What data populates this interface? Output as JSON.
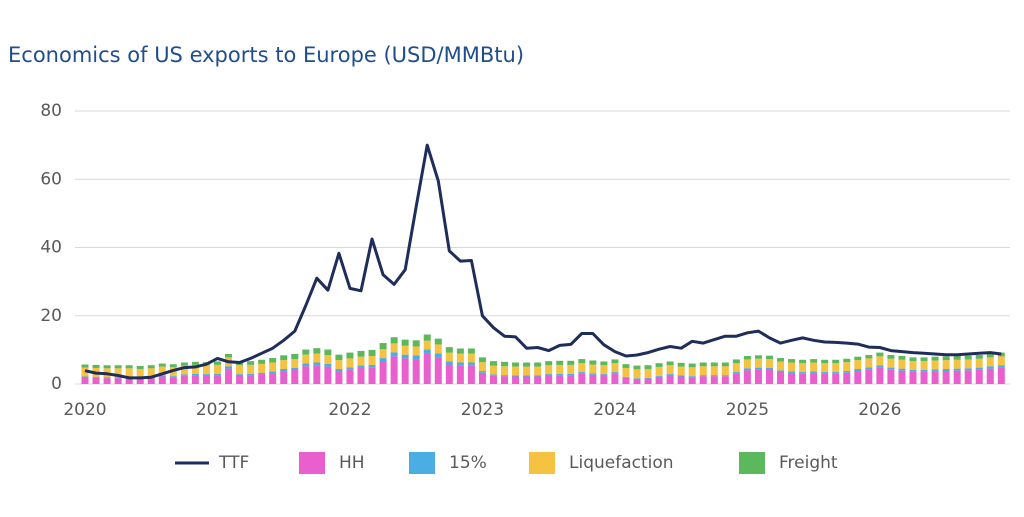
{
  "chart_data": {
    "type": "bar",
    "title": "Economics of US exports to Europe (USD/MMBtu)",
    "categories": [
      "2020",
      null,
      null,
      null,
      null,
      null,
      null,
      null,
      null,
      null,
      null,
      null,
      "2021",
      null,
      null,
      null,
      null,
      null,
      null,
      null,
      null,
      null,
      null,
      null,
      "2022",
      null,
      null,
      null,
      null,
      null,
      null,
      null,
      null,
      null,
      null,
      null,
      "2023",
      null,
      null,
      null,
      null,
      null,
      null,
      null,
      null,
      null,
      null,
      null,
      "2024",
      null,
      null,
      null,
      null,
      null,
      null,
      null,
      null,
      null,
      null,
      null,
      "2025",
      null,
      null,
      null,
      null,
      null,
      null,
      null,
      null,
      null,
      null,
      null,
      "2026",
      null,
      null,
      null,
      null,
      null,
      null,
      null,
      null,
      null,
      null,
      null
    ],
    "ylim": [
      0,
      80
    ],
    "yticks": [
      0,
      20,
      40,
      60,
      80
    ],
    "grid": true,
    "legend": "bottom",
    "series": [
      {
        "name": "HH",
        "color": "#e95fcd",
        "values": [
          1.9,
          1.8,
          1.7,
          1.7,
          1.7,
          1.6,
          1.7,
          2.2,
          2,
          2.4,
          2.6,
          2.5,
          2.6,
          4.5,
          2.5,
          2.6,
          2.9,
          3.2,
          3.8,
          4.1,
          5.2,
          5.5,
          5.1,
          3.8,
          4.3,
          4.7,
          4.9,
          6.6,
          8.1,
          7.5,
          7.3,
          8.8,
          7.8,
          5.7,
          5.5,
          5.5,
          3.3,
          2.4,
          2.3,
          2.2,
          2.2,
          2.2,
          2.5,
          2.6,
          2.6,
          3,
          2.7,
          2.5,
          3,
          1.8,
          1.5,
          1.6,
          2.1,
          2.5,
          2.2,
          2,
          2.3,
          2.3,
          2.3,
          3,
          4,
          4.2,
          4.1,
          3.5,
          3.2,
          3,
          3.2,
          3,
          3,
          3.3,
          3.8,
          4.3,
          4.8,
          4.2,
          3.9,
          3.6,
          3.6,
          3.7,
          3.8,
          3.9,
          4,
          4.2,
          4.5,
          4.8
        ]
      },
      {
        "name": "15%",
        "color": "#4aaee3",
        "values": [
          0.3,
          0.3,
          0.3,
          0.3,
          0.3,
          0.2,
          0.3,
          0.3,
          0.3,
          0.4,
          0.4,
          0.4,
          0.4,
          0.7,
          0.4,
          0.4,
          0.4,
          0.5,
          0.6,
          0.6,
          0.8,
          0.8,
          0.8,
          0.6,
          0.6,
          0.7,
          0.7,
          1,
          1.2,
          1.1,
          1.1,
          1.3,
          1.2,
          0.9,
          0.8,
          0.8,
          0.5,
          0.4,
          0.3,
          0.3,
          0.3,
          0.3,
          0.4,
          0.4,
          0.4,
          0.5,
          0.4,
          0.4,
          0.5,
          0.3,
          0.2,
          0.2,
          0.3,
          0.4,
          0.3,
          0.3,
          0.3,
          0.3,
          0.3,
          0.5,
          0.6,
          0.6,
          0.6,
          0.5,
          0.5,
          0.5,
          0.5,
          0.5,
          0.5,
          0.5,
          0.6,
          0.6,
          0.7,
          0.6,
          0.6,
          0.5,
          0.5,
          0.6,
          0.6,
          0.6,
          0.6,
          0.6,
          0.7,
          0.7
        ]
      },
      {
        "name": "Liquefaction",
        "color": "#f5c242",
        "values": [
          2.6,
          2.6,
          2.6,
          2.6,
          2.6,
          2.6,
          2.6,
          2.6,
          2.6,
          2.6,
          2.6,
          2.6,
          2.6,
          2.6,
          2.6,
          2.6,
          2.6,
          2.6,
          2.6,
          2.6,
          2.6,
          2.6,
          2.6,
          2.6,
          2.6,
          2.6,
          2.6,
          2.6,
          2.6,
          2.6,
          2.6,
          2.6,
          2.6,
          2.6,
          2.6,
          2.6,
          2.6,
          2.6,
          2.6,
          2.6,
          2.6,
          2.6,
          2.6,
          2.6,
          2.6,
          2.6,
          2.6,
          2.6,
          2.6,
          2.6,
          2.6,
          2.6,
          2.6,
          2.6,
          2.6,
          2.6,
          2.6,
          2.6,
          2.6,
          2.6,
          2.6,
          2.6,
          2.6,
          2.6,
          2.6,
          2.6,
          2.6,
          2.6,
          2.6,
          2.6,
          2.6,
          2.6,
          2.6,
          2.6,
          2.6,
          2.6,
          2.6,
          2.6,
          2.6,
          2.6,
          2.6,
          2.6,
          2.6,
          2.6
        ]
      },
      {
        "name": "Freight",
        "color": "#5cb85c",
        "values": [
          0.9,
          0.9,
          0.9,
          0.9,
          0.9,
          0.9,
          0.9,
          0.9,
          0.9,
          0.9,
          0.9,
          0.9,
          1,
          1,
          1,
          1.1,
          1.2,
          1.3,
          1.4,
          1.5,
          1.5,
          1.6,
          1.6,
          1.6,
          1.7,
          1.7,
          1.8,
          1.8,
          1.8,
          1.8,
          1.8,
          1.8,
          1.7,
          1.6,
          1.5,
          1.5,
          1.4,
          1.3,
          1.3,
          1.2,
          1.2,
          1.2,
          1.2,
          1.2,
          1.2,
          1.2,
          1.2,
          1.1,
          1.1,
          1.1,
          1.1,
          1.1,
          1.1,
          1.1,
          1.1,
          1.1,
          1.1,
          1.1,
          1.1,
          1.1,
          1,
          1,
          1,
          1,
          1,
          1,
          1,
          1,
          1,
          1,
          1,
          1,
          1.1,
          1.1,
          1.1,
          1.1,
          1.1,
          1.1,
          1.1,
          1.1,
          1.1,
          1.1,
          1.1,
          1.1
        ]
      },
      {
        "name": "TTF",
        "type": "line",
        "color": "#1f2d5a",
        "values": [
          3.9,
          3.2,
          3,
          2.5,
          1.8,
          1.8,
          2,
          3,
          4,
          4.8,
          5,
          5.8,
          7.5,
          6.5,
          6.3,
          7.5,
          9,
          10.5,
          12.8,
          15.5,
          23,
          31,
          27.5,
          38.3,
          28,
          27.3,
          42.5,
          32,
          29.2,
          33.5,
          52,
          70,
          59.5,
          39,
          36,
          36.2,
          20,
          16.5,
          14,
          13.8,
          10.5,
          10.7,
          9.8,
          11.3,
          11.6,
          14.8,
          14.8,
          11.5,
          9.5,
          8.2,
          8.5,
          9.2,
          10.2,
          11,
          10.5,
          12.5,
          12,
          13,
          14,
          14,
          15,
          15.5,
          13.5,
          12,
          12.8,
          13.5,
          12.8,
          12.3,
          12.2,
          12,
          11.7,
          10.8,
          10.7,
          9.8,
          9.5,
          9.2,
          9,
          8.8,
          8.6,
          8.6,
          8.8,
          9,
          9.2,
          8.8
        ]
      }
    ]
  }
}
